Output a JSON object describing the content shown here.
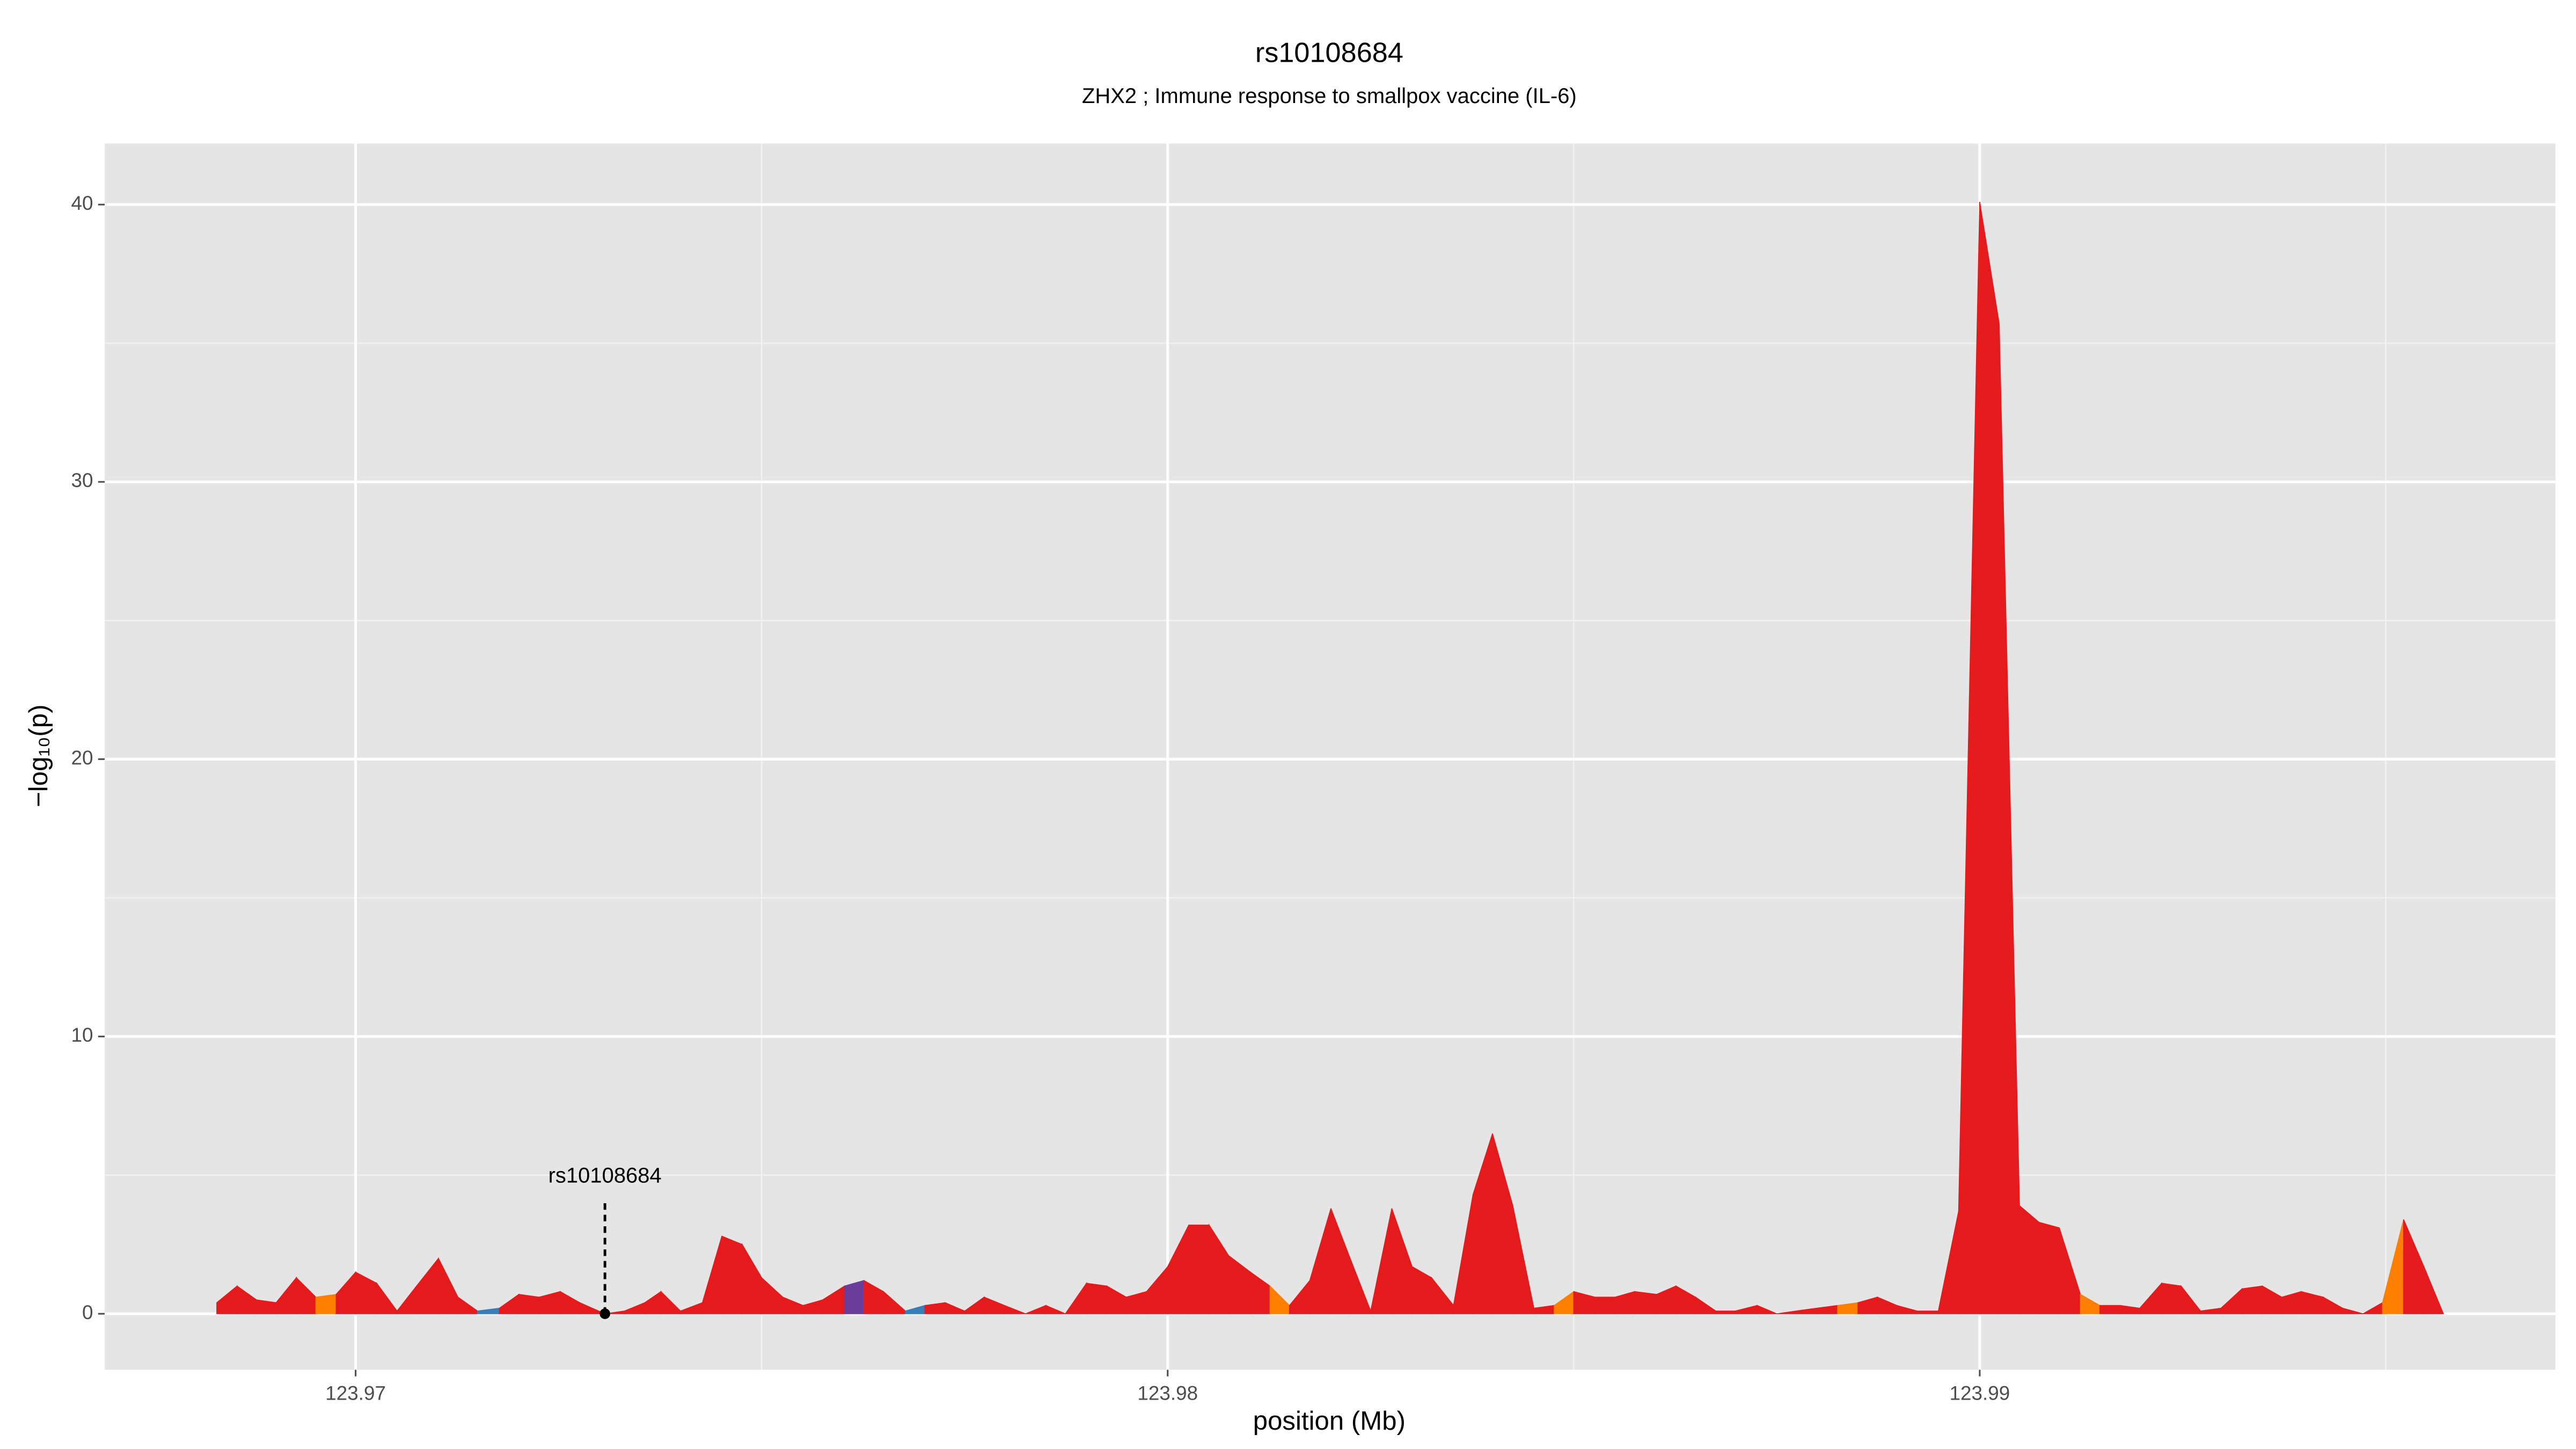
{
  "chart_data": {
    "type": "area",
    "title": "rs10108684",
    "subtitle": "ZHX2 ; Immune response to smallpox vaccine (IL-6)",
    "xlabel": "position (Mb)",
    "ylabel": "−log₁₀(p)",
    "x": [
      123.96829,
      123.96854,
      123.96878,
      123.96902,
      123.96927,
      123.96951,
      123.96976,
      123.97,
      123.97026,
      123.97051,
      123.97075,
      123.97102,
      123.97126,
      123.9715,
      123.97177,
      123.97201,
      123.97226,
      123.97252,
      123.97276,
      123.97307,
      123.97331,
      123.97356,
      123.97376,
      123.974,
      123.97427,
      123.97451,
      123.97476,
      123.975,
      123.97526,
      123.97551,
      123.97575,
      123.97602,
      123.97626,
      123.9765,
      123.97677,
      123.97701,
      123.97726,
      123.9775,
      123.97774,
      123.97799,
      123.97825,
      123.9785,
      123.97874,
      123.979,
      123.97925,
      123.97949,
      123.97974,
      123.98,
      123.98026,
      123.98051,
      123.98075,
      123.98102,
      123.98126,
      123.9815,
      123.98175,
      123.98201,
      123.98226,
      123.9825,
      123.98276,
      123.98301,
      123.98325,
      123.98352,
      123.98376,
      123.984,
      123.98425,
      123.98451,
      123.98476,
      123.985,
      123.98526,
      123.98551,
      123.98575,
      123.98602,
      123.98626,
      123.9865,
      123.98675,
      123.98699,
      123.98726,
      123.9875,
      123.98774,
      123.98799,
      123.98825,
      123.9885,
      123.98874,
      123.98898,
      123.98923,
      123.98949,
      123.98974,
      123.99,
      123.99024,
      123.99049,
      123.99073,
      123.99098,
      123.99124,
      123.99148,
      123.99173,
      123.99197,
      123.99224,
      123.99248,
      123.99272,
      123.99297,
      123.99323,
      123.99348,
      123.99372,
      123.99396,
      123.99423,
      123.99447,
      123.99472,
      123.99496,
      123.99522,
      123.99547,
      123.99571
    ],
    "values": [
      0.4,
      1.0,
      0.5,
      0.4,
      1.3,
      0.6,
      0.7,
      1.5,
      1.1,
      0.1,
      1.0,
      2.0,
      0.6,
      0.1,
      0.2,
      0.7,
      0.6,
      0.8,
      0.4,
      0.0,
      0.1,
      0.4,
      0.8,
      0.1,
      0.4,
      2.8,
      2.5,
      1.3,
      0.6,
      0.3,
      0.5,
      1.0,
      1.2,
      0.8,
      0.1,
      0.3,
      0.4,
      0.1,
      0.6,
      0.3,
      0.0,
      0.3,
      0.0,
      1.1,
      1.0,
      0.6,
      0.8,
      1.7,
      3.2,
      3.2,
      2.1,
      1.5,
      1.0,
      0.3,
      1.2,
      3.8,
      1.9,
      0.1,
      3.8,
      1.7,
      1.3,
      0.3,
      4.3,
      6.5,
      3.9,
      0.2,
      0.3,
      0.8,
      0.6,
      0.6,
      0.8,
      0.7,
      1.0,
      0.6,
      0.1,
      0.1,
      0.3,
      0.0,
      0.1,
      0.2,
      0.3,
      0.4,
      0.6,
      0.3,
      0.1,
      0.1,
      3.7,
      40.1,
      35.7,
      3.9,
      3.3,
      3.1,
      0.7,
      0.3,
      0.3,
      0.2,
      1.1,
      1.0,
      0.1,
      0.2,
      0.9,
      1.0,
      0.6,
      0.8,
      0.6,
      0.2,
      0.0,
      0.4,
      3.4,
      1.7,
      0.0
    ],
    "colors": [
      "#e41a1c",
      "#e41a1c",
      "#e41a1c",
      "#e41a1c",
      "#e41a1c",
      "#ff7f00",
      "#e41a1c",
      "#e41a1c",
      "#e41a1c",
      "#e41a1c",
      "#e41a1c",
      "#e41a1c",
      "#e41a1c",
      "#377eb8",
      "#e41a1c",
      "#e41a1c",
      "#e41a1c",
      "#e41a1c",
      "#e41a1c",
      "#e41a1c",
      "#e41a1c",
      "#e41a1c",
      "#e41a1c",
      "#e41a1c",
      "#e41a1c",
      "#e41a1c",
      "#e41a1c",
      "#e41a1c",
      "#e41a1c",
      "#e41a1c",
      "#e41a1c",
      "#6a3d9a",
      "#e41a1c",
      "#e41a1c",
      "#377eb8",
      "#e41a1c",
      "#e41a1c",
      "#e41a1c",
      "#e41a1c",
      "#e41a1c",
      "#e41a1c",
      "#e41a1c",
      "#e41a1c",
      "#e41a1c",
      "#e41a1c",
      "#e41a1c",
      "#e41a1c",
      "#e41a1c",
      "#e41a1c",
      "#e41a1c",
      "#e41a1c",
      "#e41a1c",
      "#ff7f00",
      "#e41a1c",
      "#e41a1c",
      "#e41a1c",
      "#e41a1c",
      "#e41a1c",
      "#e41a1c",
      "#e41a1c",
      "#e41a1c",
      "#e41a1c",
      "#e41a1c",
      "#e41a1c",
      "#e41a1c",
      "#e41a1c",
      "#ff7f00",
      "#e41a1c",
      "#e41a1c",
      "#e41a1c",
      "#e41a1c",
      "#e41a1c",
      "#e41a1c",
      "#e41a1c",
      "#e41a1c",
      "#e41a1c",
      "#e41a1c",
      "#e41a1c",
      "#e41a1c",
      "#e41a1c",
      "#ff7f00",
      "#e41a1c",
      "#e41a1c",
      "#e41a1c",
      "#e41a1c",
      "#e41a1c",
      "#e41a1c",
      "#e41a1c",
      "#e41a1c",
      "#e41a1c",
      "#e41a1c",
      "#e41a1c",
      "#ff7f00",
      "#e41a1c",
      "#e41a1c",
      "#e41a1c",
      "#e41a1c",
      "#e41a1c",
      "#e41a1c",
      "#e41a1c",
      "#e41a1c",
      "#e41a1c",
      "#e41a1c",
      "#e41a1c",
      "#e41a1c",
      "#e41a1c",
      "#e41a1c",
      "#ff7f00",
      "#e41a1c",
      "#e41a1c",
      "#e41a1c"
    ],
    "xlim": [
      123.96691,
      123.99709
    ],
    "ylim": [
      -2.02,
      42.2
    ],
    "xticks": [
      123.97,
      123.98,
      123.99
    ],
    "yticks": [
      0,
      10,
      20,
      30,
      40
    ],
    "grid": true,
    "annotation": {
      "text": "rs10108684",
      "x": 123.97307,
      "y": 0
    }
  }
}
